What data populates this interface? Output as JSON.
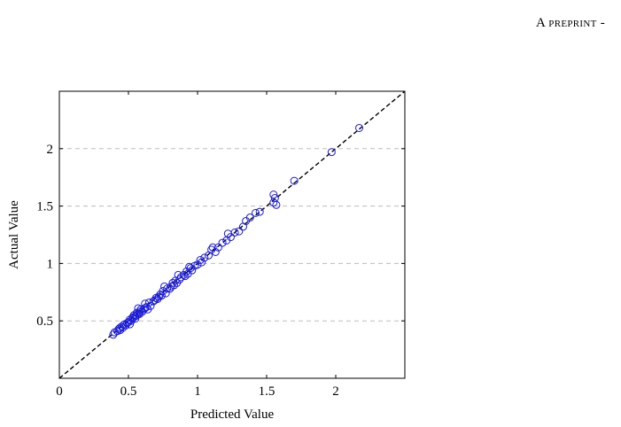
{
  "header": {
    "running_title": "A preprint -"
  },
  "chart_data": {
    "type": "scatter",
    "title": "",
    "xlabel": "Predicted Value",
    "ylabel": "Actual Value",
    "xlim": [
      0,
      2.5
    ],
    "ylim": [
      0,
      2.5
    ],
    "x_ticks": [
      0,
      0.5,
      1,
      1.5,
      2
    ],
    "x_tick_labels": [
      "0",
      "0.5",
      "1",
      "1.5",
      "2"
    ],
    "y_ticks": [
      0.5,
      1,
      1.5,
      2
    ],
    "y_tick_labels": [
      "0.5",
      "1",
      "1.5",
      "2"
    ],
    "grid": {
      "horizontal": true,
      "style": "dashed"
    },
    "reference_line": {
      "from": [
        0,
        0
      ],
      "to": [
        2.5,
        2.5
      ],
      "style": "dashed"
    },
    "colors": {
      "points": "#1a1adb",
      "grid": "#bdbdbd",
      "axes": "#000000",
      "reference": "#000000"
    },
    "marker": "open-circle",
    "points": [
      [
        0.39,
        0.38
      ],
      [
        0.4,
        0.4
      ],
      [
        0.42,
        0.41
      ],
      [
        0.43,
        0.43
      ],
      [
        0.44,
        0.44
      ],
      [
        0.45,
        0.45
      ],
      [
        0.46,
        0.44
      ],
      [
        0.47,
        0.47
      ],
      [
        0.48,
        0.46
      ],
      [
        0.49,
        0.48
      ],
      [
        0.5,
        0.49
      ],
      [
        0.51,
        0.47
      ],
      [
        0.51,
        0.51
      ],
      [
        0.52,
        0.5
      ],
      [
        0.53,
        0.53
      ],
      [
        0.53,
        0.52
      ],
      [
        0.54,
        0.55
      ],
      [
        0.55,
        0.54
      ],
      [
        0.55,
        0.52
      ],
      [
        0.56,
        0.57
      ],
      [
        0.56,
        0.55
      ],
      [
        0.57,
        0.56
      ],
      [
        0.58,
        0.58
      ],
      [
        0.58,
        0.56
      ],
      [
        0.59,
        0.6
      ],
      [
        0.6,
        0.58
      ],
      [
        0.61,
        0.6
      ],
      [
        0.62,
        0.61
      ],
      [
        0.63,
        0.62
      ],
      [
        0.64,
        0.6
      ],
      [
        0.65,
        0.66
      ],
      [
        0.66,
        0.63
      ],
      [
        0.68,
        0.67
      ],
      [
        0.69,
        0.68
      ],
      [
        0.7,
        0.7
      ],
      [
        0.71,
        0.69
      ],
      [
        0.72,
        0.71
      ],
      [
        0.73,
        0.73
      ],
      [
        0.74,
        0.72
      ],
      [
        0.75,
        0.76
      ],
      [
        0.77,
        0.74
      ],
      [
        0.78,
        0.78
      ],
      [
        0.8,
        0.78
      ],
      [
        0.81,
        0.8
      ],
      [
        0.82,
        0.83
      ],
      [
        0.83,
        0.81
      ],
      [
        0.84,
        0.85
      ],
      [
        0.85,
        0.83
      ],
      [
        0.87,
        0.86
      ],
      [
        0.88,
        0.88
      ],
      [
        0.9,
        0.9
      ],
      [
        0.91,
        0.89
      ],
      [
        0.92,
        0.93
      ],
      [
        0.93,
        0.91
      ],
      [
        0.95,
        0.96
      ],
      [
        0.96,
        0.94
      ],
      [
        0.98,
        0.98
      ],
      [
        1.0,
        0.99
      ],
      [
        1.02,
        1.03
      ],
      [
        1.03,
        1.01
      ],
      [
        1.05,
        1.05
      ],
      [
        1.08,
        1.07
      ],
      [
        1.1,
        1.12
      ],
      [
        1.13,
        1.1
      ],
      [
        1.15,
        1.14
      ],
      [
        1.18,
        1.18
      ],
      [
        1.21,
        1.2
      ],
      [
        1.24,
        1.23
      ],
      [
        1.27,
        1.27
      ],
      [
        1.3,
        1.28
      ],
      [
        1.33,
        1.32
      ],
      [
        1.38,
        1.4
      ],
      [
        1.42,
        1.44
      ],
      [
        1.45,
        1.45
      ],
      [
        1.55,
        1.53
      ],
      [
        1.56,
        1.57
      ],
      [
        1.57,
        1.51
      ],
      [
        1.7,
        1.72
      ],
      [
        1.97,
        1.97
      ],
      [
        2.17,
        2.18
      ],
      [
        0.44,
        0.42
      ],
      [
        0.57,
        0.61
      ],
      [
        0.62,
        0.65
      ],
      [
        0.76,
        0.8
      ],
      [
        0.86,
        0.9
      ],
      [
        0.94,
        0.97
      ],
      [
        1.11,
        1.14
      ],
      [
        1.22,
        1.26
      ],
      [
        1.35,
        1.37
      ],
      [
        1.55,
        1.6
      ]
    ]
  }
}
